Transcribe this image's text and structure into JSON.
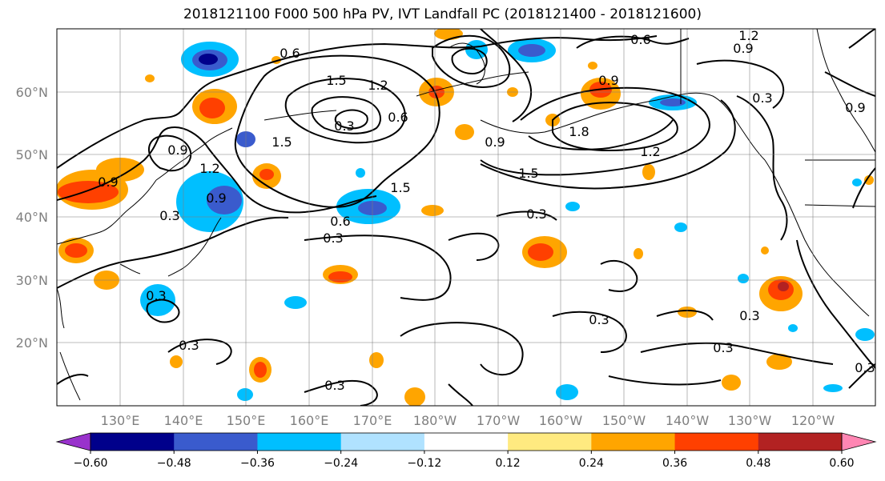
{
  "title": "2018121100 F000 500 hPa PV, IVT Landfall PC (2018121400 - 2018121600)",
  "lat_labels": [
    "60°N",
    "50°N",
    "40°N",
    "30°N",
    "20°N"
  ],
  "lon_labels": [
    "130°E",
    "140°E",
    "150°E",
    "160°E",
    "170°E",
    "180°W",
    "170°W",
    "160°W",
    "150°W",
    "140°W",
    "130°W",
    "120°W"
  ],
  "contour_labels": [
    "0.6",
    "0.6",
    "1.2",
    "0.9",
    "0.9",
    "1.5",
    "1.2",
    "0.6",
    "0.3",
    "0.9",
    "1.8",
    "1.5",
    "1.2",
    "0.3",
    "0.9",
    "1.5",
    "1.2",
    "0.9",
    "0.9",
    "1.5",
    "0.9",
    "0.6",
    "0.3",
    "0.3",
    "0.3",
    "0.3",
    "0.3",
    "0.3",
    "0.3",
    "0.3",
    "0.3",
    "0.3"
  ],
  "colorbar": {
    "ticks": [
      "−0.60",
      "−0.48",
      "−0.36",
      "−0.24",
      "−0.12",
      "0.12",
      "0.24",
      "0.36",
      "0.48",
      "0.60"
    ],
    "colors": [
      "#9932cc",
      "#00008b",
      "#3a5bcd",
      "#00bfff",
      "#b0e2ff",
      "#ffffff",
      "#ffea80",
      "#ffa500",
      "#ff4000",
      "#b22222",
      "#ff86b3"
    ]
  }
}
